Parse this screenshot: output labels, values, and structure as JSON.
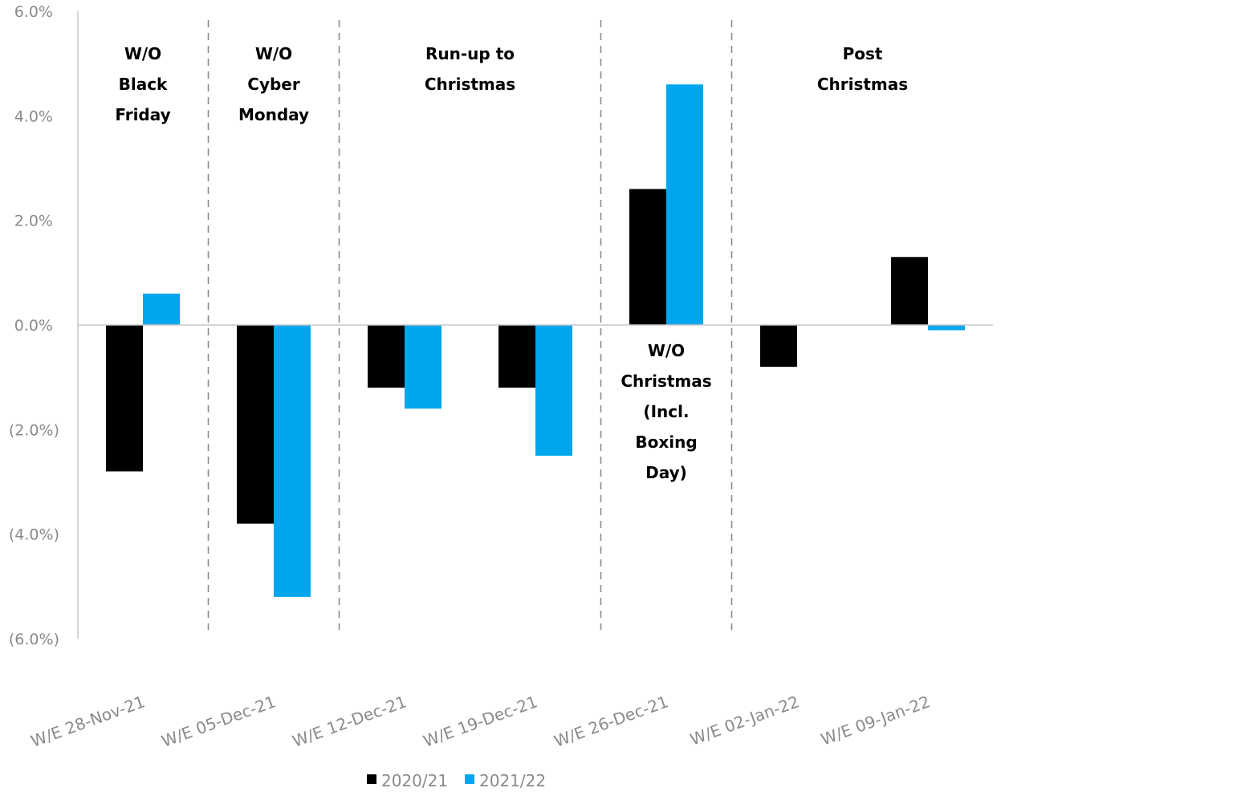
{
  "chart_data": {
    "type": "bar",
    "title": "",
    "xlabel": "",
    "ylabel": "",
    "ylim": [
      -6,
      6
    ],
    "y_ticks": [
      6,
      4,
      2,
      0,
      -2,
      -4,
      -6
    ],
    "y_tick_labels": [
      "6.0%",
      "4.0%",
      "2.0%",
      "0.0%",
      "(2.0%)",
      "(4.0%)",
      "(6.0%)"
    ],
    "categories": [
      "W/E 28-Nov-21",
      "W/E 05-Dec-21",
      "W/E 12-Dec-21",
      "W/E 19-Dec-21",
      "W/E 26-Dec-21",
      "W/E 02-Jan-22",
      "W/E 09-Jan-22"
    ],
    "series": [
      {
        "name": "2020/21",
        "color": "#000000",
        "values": [
          -2.8,
          -3.8,
          -1.2,
          -1.2,
          2.6,
          -0.8,
          1.3
        ]
      },
      {
        "name": "2021/22",
        "color": "#00a6ed",
        "values": [
          0.6,
          -5.2,
          -1.6,
          -2.5,
          4.6,
          0.0,
          -0.1
        ]
      }
    ],
    "grid": false,
    "legend_position": "bottom",
    "period_dividers_after_category": [
      0,
      1,
      3,
      4
    ],
    "annotations": [
      {
        "lines": [
          "W/O",
          "Black",
          "Friday"
        ],
        "category_span": [
          0,
          0
        ],
        "placement": "top"
      },
      {
        "lines": [
          "W/O",
          "Cyber",
          "Monday"
        ],
        "category_span": [
          1,
          1
        ],
        "placement": "top"
      },
      {
        "lines": [
          "Run-up to",
          "Christmas"
        ],
        "category_span": [
          2,
          3
        ],
        "placement": "top"
      },
      {
        "lines": [
          "W/O",
          "Christmas",
          "(Incl.",
          "Boxing",
          "Day)"
        ],
        "category_span": [
          4,
          4
        ],
        "placement": "below-zero"
      },
      {
        "lines": [
          "Post",
          "Christmas"
        ],
        "category_span": [
          5,
          6
        ],
        "placement": "top"
      }
    ]
  }
}
